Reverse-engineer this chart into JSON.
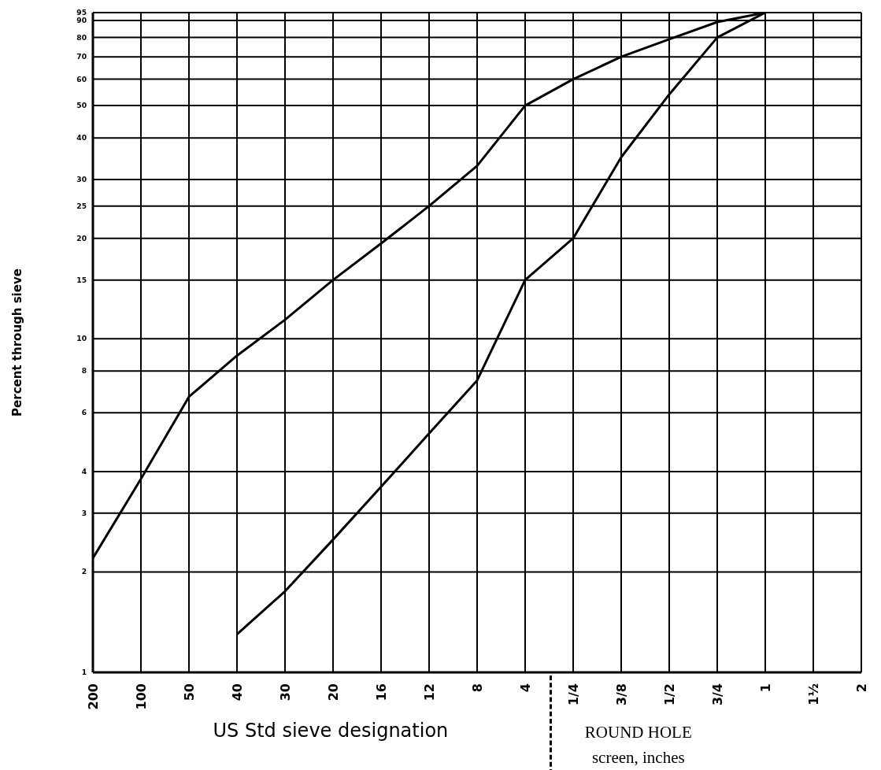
{
  "chart_data": {
    "type": "line",
    "xlabel": "US Std sieve designation",
    "ylabel": "Percent through sieve",
    "annotations": [
      "ROUND HOLE screen, inches"
    ],
    "log": "y",
    "grid": true,
    "categories": [
      "200",
      "100",
      "50",
      "40",
      "30",
      "20",
      "16",
      "12",
      "8",
      "4",
      "1/4",
      "3/8",
      "1/2",
      "3/4",
      "1",
      "1½",
      "2"
    ],
    "ylim": [
      1,
      95
    ],
    "yticks": [
      1,
      2,
      3,
      4,
      6,
      8,
      10,
      15,
      20,
      25,
      30,
      40,
      50,
      60,
      70,
      80,
      90,
      95
    ],
    "series": [
      {
        "color": "#000000",
        "values": [
          2.2,
          3.8,
          6.7,
          8.9,
          11.4,
          15,
          19.3,
          25,
          33,
          50,
          60,
          70,
          79,
          89,
          95,
          null,
          null
        ]
      },
      {
        "color": "#000000",
        "values": [
          null,
          null,
          null,
          1.3,
          1.75,
          2.5,
          3.6,
          5.2,
          7.5,
          15,
          20,
          35,
          54,
          80,
          95,
          null,
          null
        ]
      }
    ]
  }
}
